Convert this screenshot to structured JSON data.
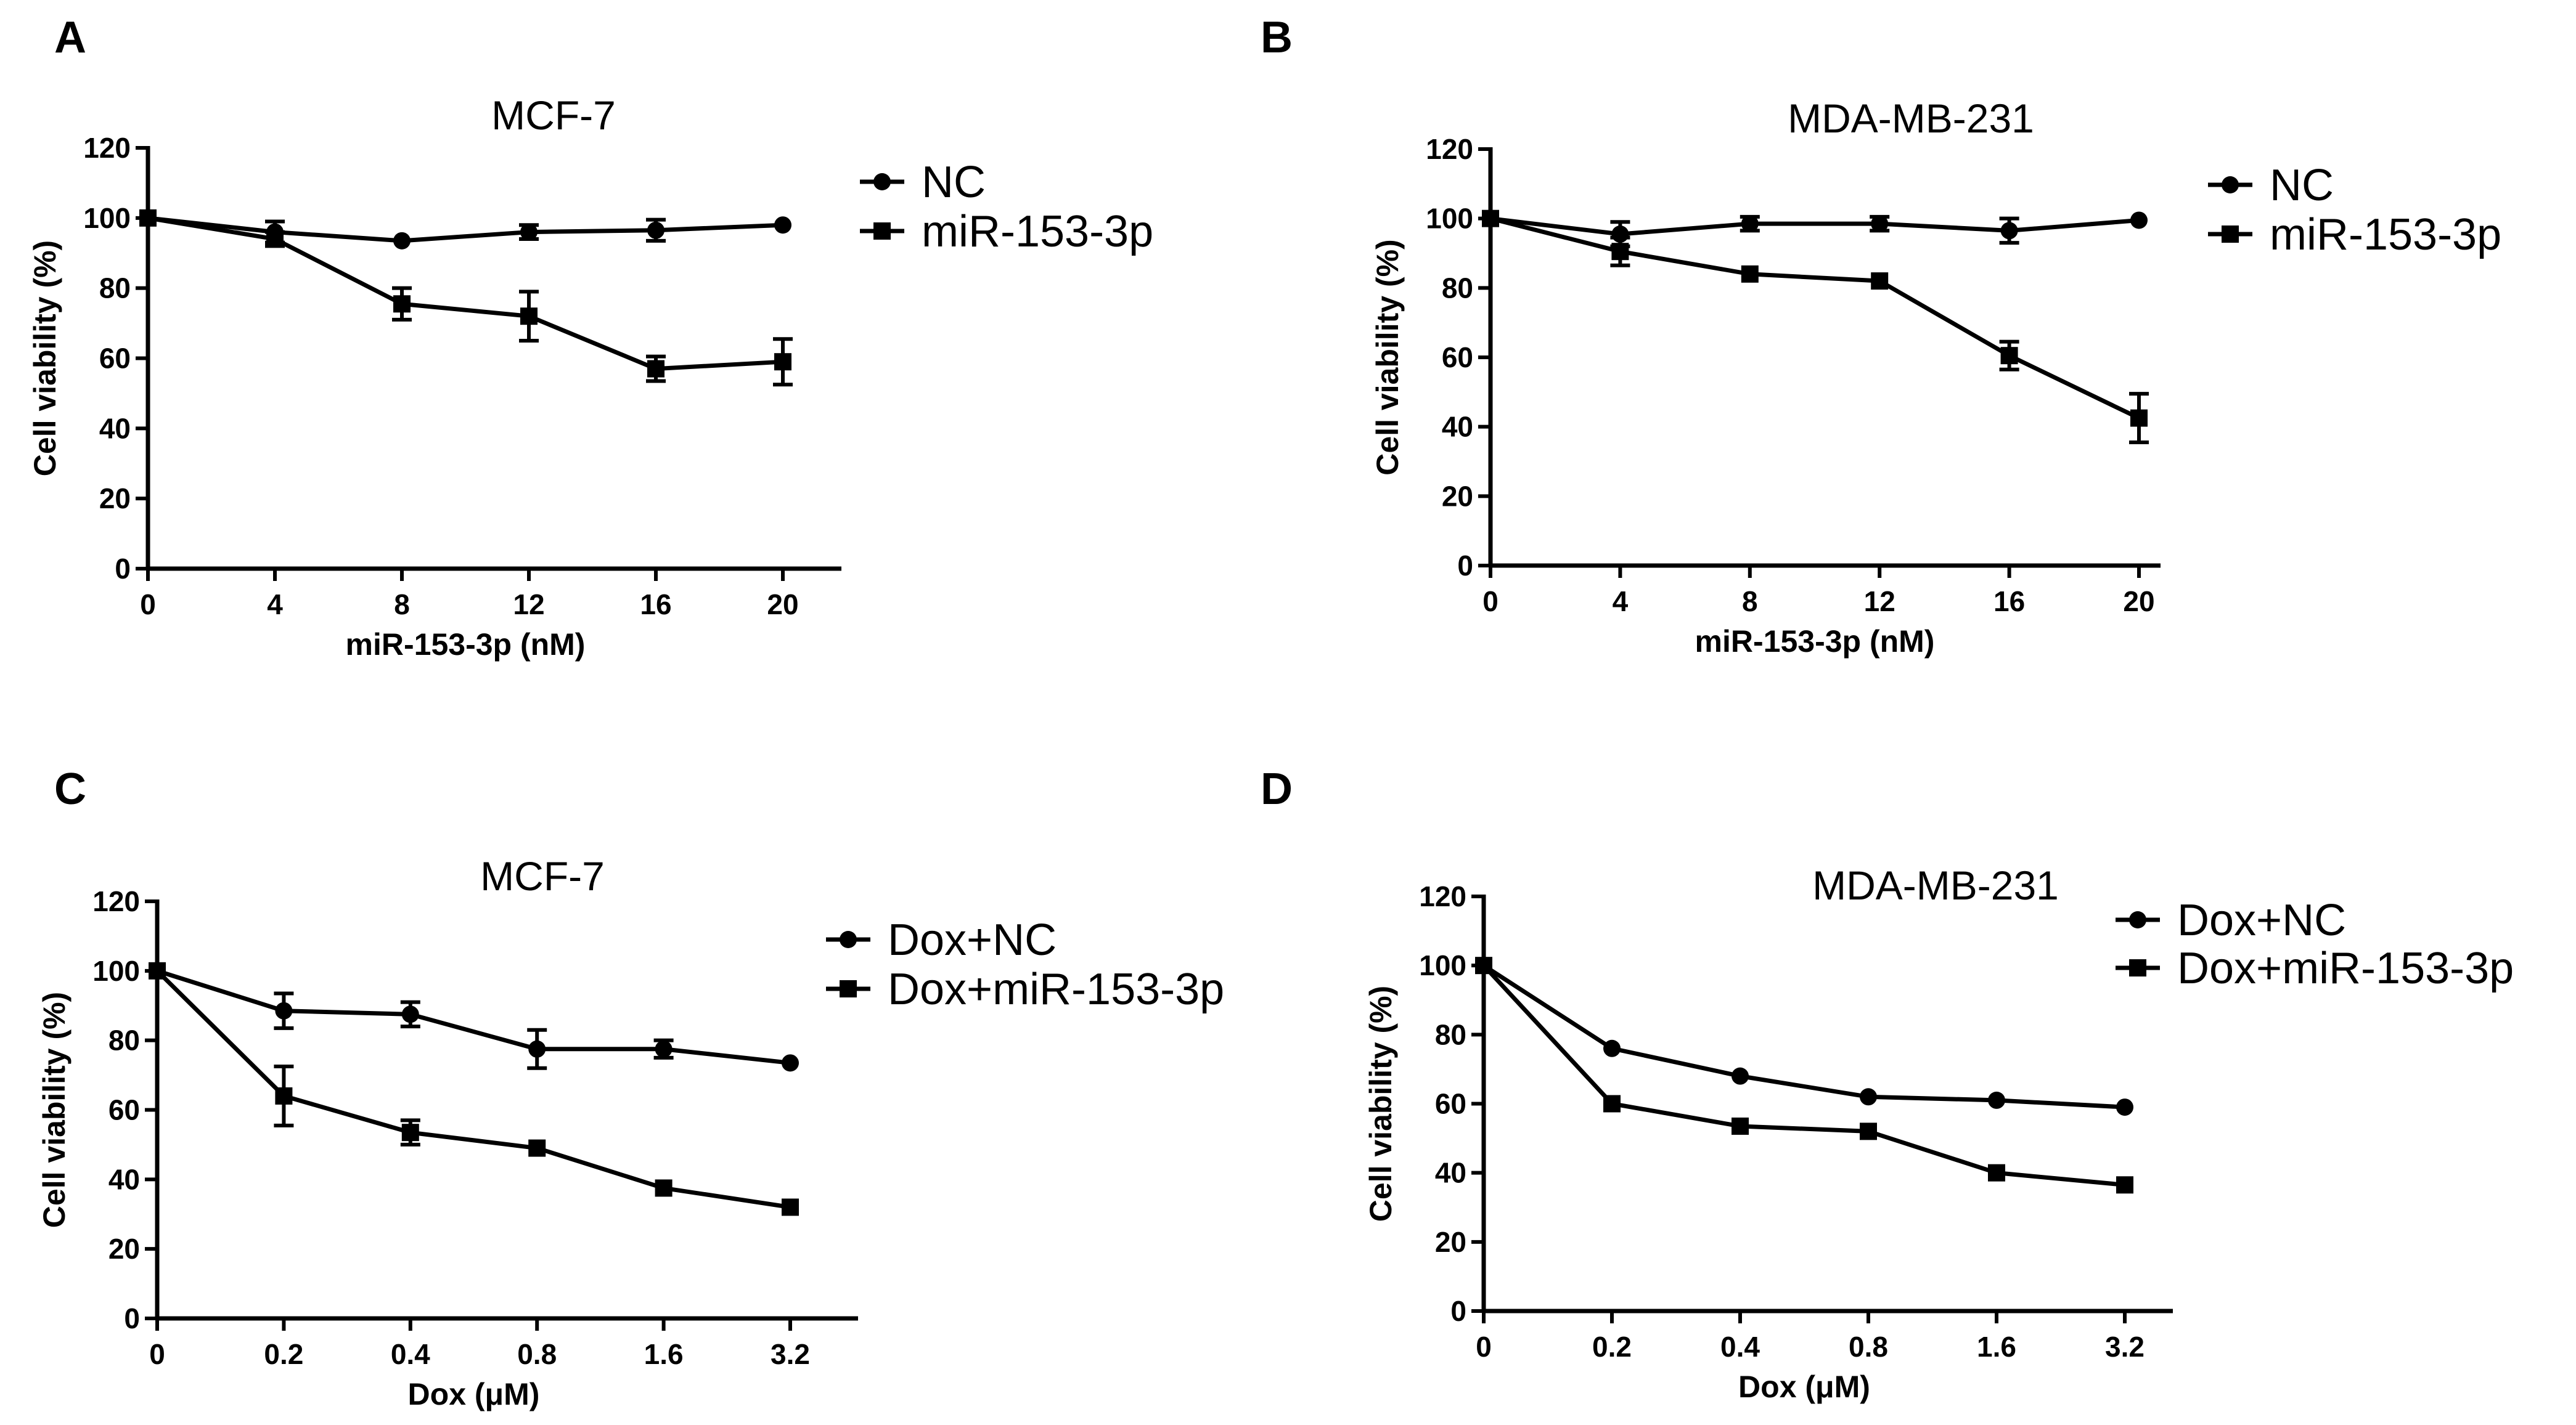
{
  "chart_data": [
    {
      "panel": "A",
      "type": "line",
      "title": "MCF-7",
      "xlabel": "miR-153-3p (nM)",
      "ylabel": "Cell viability (%)",
      "categories": [
        "0",
        "4",
        "8",
        "12",
        "16",
        "20"
      ],
      "x": [
        0,
        4,
        8,
        12,
        16,
        20
      ],
      "xlim": [
        0,
        22
      ],
      "ylim": [
        0,
        120
      ],
      "yticks": [
        0,
        20,
        40,
        60,
        80,
        100,
        120
      ],
      "legend": "right",
      "series": [
        {
          "name": "NC",
          "marker": "circle",
          "values": [
            100,
            96,
            93.5,
            96,
            96.5,
            98
          ],
          "errors": [
            0,
            3,
            0,
            2,
            3,
            0
          ]
        },
        {
          "name": "miR-153-3p",
          "marker": "square",
          "values": [
            100,
            94,
            75.5,
            72,
            57,
            59
          ],
          "errors": [
            0,
            2,
            4.5,
            7,
            3.5,
            6.5
          ]
        }
      ]
    },
    {
      "panel": "B",
      "type": "line",
      "title": "MDA-MB-231",
      "xlabel": "miR-153-3p (nM)",
      "ylabel": "Cell viability (%)",
      "categories": [
        "0",
        "4",
        "8",
        "12",
        "16",
        "20"
      ],
      "x": [
        0,
        4,
        8,
        12,
        16,
        20
      ],
      "xlim": [
        0,
        22
      ],
      "ylim": [
        0,
        120
      ],
      "yticks": [
        0,
        20,
        40,
        60,
        80,
        100,
        120
      ],
      "legend": "right",
      "series": [
        {
          "name": "NC",
          "marker": "circle",
          "values": [
            100,
            95.5,
            98.5,
            98.5,
            96.5,
            99.5
          ],
          "errors": [
            0,
            3.5,
            2,
            2,
            3.5,
            0
          ]
        },
        {
          "name": "miR-153-3p",
          "marker": "square",
          "values": [
            100,
            90.5,
            84,
            82,
            60.5,
            42.5
          ],
          "errors": [
            0,
            4,
            0,
            0,
            4,
            7
          ]
        }
      ]
    },
    {
      "panel": "C",
      "type": "line",
      "title": "MCF-7",
      "xlabel": "Dox (μM)",
      "ylabel": "Cell viability (%)",
      "categories": [
        "0",
        "0.2",
        "0.4",
        "0.8",
        "1.6",
        "3.2"
      ],
      "xlim": [
        0,
        5.5
      ],
      "ylim": [
        0,
        120
      ],
      "yticks": [
        0,
        20,
        40,
        60,
        80,
        100,
        120
      ],
      "legend": "right",
      "series": [
        {
          "name": "Dox+NC",
          "marker": "circle",
          "values": [
            100,
            88.5,
            87.5,
            77.5,
            77.5,
            73.5
          ],
          "errors": [
            0,
            5,
            3.5,
            5.5,
            2.5,
            0
          ]
        },
        {
          "name": "Dox+miR-153-3p",
          "marker": "square",
          "values": [
            100,
            64,
            53.5,
            49,
            37.5,
            32
          ],
          "errors": [
            0,
            8.5,
            3.5,
            0,
            0,
            0
          ]
        }
      ]
    },
    {
      "panel": "D",
      "type": "line",
      "title": "MDA-MB-231",
      "xlabel": "Dox (μM)",
      "ylabel": "Cell viability (%)",
      "categories": [
        "0",
        "0.2",
        "0.4",
        "0.8",
        "1.6",
        "3.2"
      ],
      "xlim": [
        0,
        5.5
      ],
      "ylim": [
        0,
        120
      ],
      "yticks": [
        0,
        20,
        40,
        60,
        80,
        100,
        120
      ],
      "legend": "top-right",
      "series": [
        {
          "name": "Dox+NC",
          "marker": "circle",
          "values": [
            100,
            76,
            68,
            62,
            61,
            59
          ],
          "errors": [
            0,
            0,
            0,
            0,
            0,
            0
          ]
        },
        {
          "name": "Dox+miR-153-3p",
          "marker": "square",
          "values": [
            100,
            60,
            53.5,
            52,
            40,
            36.5
          ],
          "errors": [
            0,
            0,
            0,
            0,
            0,
            0
          ]
        }
      ]
    }
  ]
}
